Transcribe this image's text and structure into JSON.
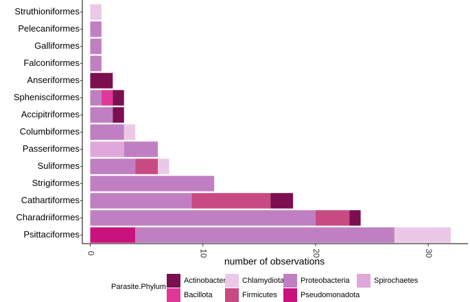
{
  "chart_data": {
    "type": "stacked-barh",
    "categories": [
      "Struthioniformes",
      "Pelecaniformes",
      "Galliformes",
      "Falconiformes",
      "Anseriformes",
      "Sphenisciformes",
      "Accipitriformes",
      "Columbiformes",
      "Passeriformes",
      "Suliformes",
      "Strigiformes",
      "Cathartiformes",
      "Charadriiformes",
      "Psittaciformes"
    ],
    "series": [
      {
        "name": "Actinobacteria",
        "color": "#7b0f4f",
        "values": [
          0,
          0,
          0,
          0,
          2,
          1,
          1,
          0,
          0,
          0,
          0,
          2,
          1,
          0
        ]
      },
      {
        "name": "Bacillota",
        "color": "#e0389a",
        "values": [
          0,
          0,
          0,
          0,
          0,
          1,
          0,
          0,
          0,
          0,
          0,
          0,
          0,
          0
        ]
      },
      {
        "name": "Chlamydiota",
        "color": "#ebc9e6",
        "values": [
          1,
          0,
          0,
          0,
          0,
          0,
          0,
          1,
          0,
          1,
          0,
          0,
          0,
          5
        ]
      },
      {
        "name": "Firmicutes",
        "color": "#c84a82",
        "values": [
          0,
          0,
          0,
          0,
          0,
          0,
          0,
          0,
          0,
          2,
          0,
          7,
          3,
          0
        ]
      },
      {
        "name": "Proteobacteria",
        "color": "#c07fc3",
        "values": [
          0,
          1,
          1,
          1,
          0,
          1,
          2,
          3,
          3,
          4,
          11,
          9,
          20,
          23
        ]
      },
      {
        "name": "Pseudomonadota",
        "color": "#c9127e",
        "values": [
          0,
          0,
          0,
          0,
          0,
          0,
          0,
          0,
          0,
          0,
          0,
          0,
          0,
          4
        ]
      },
      {
        "name": "Spirochaetes",
        "color": "#e0a8da",
        "values": [
          0,
          0,
          0,
          0,
          0,
          0,
          0,
          0,
          3,
          0,
          0,
          0,
          0,
          0
        ]
      }
    ],
    "xlabel": "number of observations",
    "legend_title": "Parasite.Phylum",
    "xlim": [
      -0.7,
      33.4
    ],
    "xticks": [
      0,
      10,
      20,
      30
    ],
    "legend": "bottom"
  }
}
